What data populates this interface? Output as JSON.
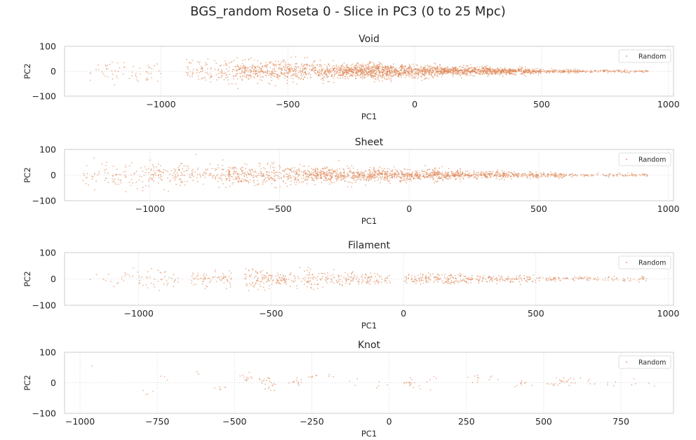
{
  "figure": {
    "suptitle": "BGS_random Roseta 0 - Slice in PC3 (0 to 25 Mpc)"
  },
  "colors": {
    "points": "#dd8452",
    "axes_edge": "#cccccc",
    "grid": "#d9d9d9",
    "text": "#262626"
  },
  "chart_data": [
    {
      "type": "scatter",
      "title": "Void",
      "xlabel": "PC1",
      "ylabel": "PC2",
      "xlim": [
        -1380,
        1020
      ],
      "ylim": [
        -100,
        100
      ],
      "xticks": [
        -1000,
        -500,
        0,
        500,
        1000
      ],
      "yticks": [
        -100,
        0,
        100
      ],
      "grid": true,
      "legend": {
        "entries": [
          "Random"
        ],
        "placement": "top-right"
      },
      "series": [
        {
          "name": "Random",
          "color": "#dd8452",
          "approx_count": 2600,
          "density_profile": [
            {
              "x": [
                -1280,
                -1000
              ],
              "y_spread": 45,
              "count": 60
            },
            {
              "x": [
                -900,
                -700
              ],
              "y_spread": 45,
              "count": 120
            },
            {
              "x": [
                -700,
                -450
              ],
              "y_spread": 40,
              "count": 340
            },
            {
              "x": [
                -450,
                -300
              ],
              "y_spread": 35,
              "count": 210
            },
            {
              "x": [
                -300,
                -100
              ],
              "y_spread": 30,
              "count": 520
            },
            {
              "x": [
                -100,
                100
              ],
              "y_spread": 25,
              "count": 420
            },
            {
              "x": [
                100,
                300
              ],
              "y_spread": 18,
              "count": 420
            },
            {
              "x": [
                300,
                500
              ],
              "y_spread": 12,
              "count": 330
            },
            {
              "x": [
                500,
                700
              ],
              "y_spread": 8,
              "count": 130
            },
            {
              "x": [
                700,
                920
              ],
              "y_spread": 5,
              "count": 90
            }
          ]
        }
      ]
    },
    {
      "type": "scatter",
      "title": "Sheet",
      "xlabel": "PC1",
      "ylabel": "PC2",
      "xlim": [
        -1330,
        1020
      ],
      "ylim": [
        -100,
        100
      ],
      "xticks": [
        -1000,
        -500,
        0,
        500,
        1000
      ],
      "yticks": [
        -100,
        0,
        100
      ],
      "grid": true,
      "legend": {
        "entries": [
          "Random"
        ],
        "placement": "top-right"
      },
      "series": [
        {
          "name": "Random",
          "color": "#dd8452",
          "approx_count": 1900,
          "density_profile": [
            {
              "x": [
                -1260,
                -1000
              ],
              "y_spread": 55,
              "count": 90
            },
            {
              "x": [
                -1000,
                -700
              ],
              "y_spread": 45,
              "count": 170
            },
            {
              "x": [
                -700,
                -400
              ],
              "y_spread": 40,
              "count": 300
            },
            {
              "x": [
                -400,
                -200
              ],
              "y_spread": 30,
              "count": 300
            },
            {
              "x": [
                -200,
                0
              ],
              "y_spread": 25,
              "count": 300
            },
            {
              "x": [
                0,
                200
              ],
              "y_spread": 22,
              "count": 300
            },
            {
              "x": [
                200,
                400
              ],
              "y_spread": 15,
              "count": 200
            },
            {
              "x": [
                400,
                600
              ],
              "y_spread": 10,
              "count": 150
            },
            {
              "x": [
                600,
                920
              ],
              "y_spread": 6,
              "count": 100
            }
          ]
        }
      ]
    },
    {
      "type": "scatter",
      "title": "Filament",
      "xlabel": "PC1",
      "ylabel": "PC2",
      "xlim": [
        -1280,
        1020
      ],
      "ylim": [
        -100,
        100
      ],
      "xticks": [
        -1000,
        -500,
        0,
        500,
        1000
      ],
      "yticks": [
        -100,
        0,
        100
      ],
      "grid": true,
      "legend": {
        "entries": [
          "Random"
        ],
        "placement": "top-right"
      },
      "series": [
        {
          "name": "Random",
          "color": "#dd8452",
          "approx_count": 800,
          "density_profile": [
            {
              "x": [
                -1200,
                -1000
              ],
              "y_spread": 30,
              "count": 20
            },
            {
              "x": [
                -1000,
                -850
              ],
              "y_spread": 35,
              "count": 40
            },
            {
              "x": [
                -800,
                -650
              ],
              "y_spread": 35,
              "count": 70
            },
            {
              "x": [
                -600,
                -300
              ],
              "y_spread": 35,
              "count": 190
            },
            {
              "x": [
                -300,
                -50
              ],
              "y_spread": 25,
              "count": 130
            },
            {
              "x": [
                0,
                250
              ],
              "y_spread": 20,
              "count": 160
            },
            {
              "x": [
                250,
                500
              ],
              "y_spread": 14,
              "count": 120
            },
            {
              "x": [
                500,
                920
              ],
              "y_spread": 8,
              "count": 110
            }
          ]
        }
      ]
    },
    {
      "type": "scatter",
      "title": "Knot",
      "xlabel": "PC1",
      "ylabel": "PC2",
      "xlim": [
        -1050,
        920
      ],
      "ylim": [
        -100,
        100
      ],
      "xticks": [
        -1000,
        -750,
        -500,
        -250,
        0,
        250,
        500,
        750
      ],
      "yticks": [
        -100,
        0,
        100
      ],
      "grid": true,
      "legend": {
        "entries": [
          "Random"
        ],
        "placement": "top-right"
      },
      "series": [
        {
          "name": "Random",
          "color": "#dd8452",
          "approx_count": 200,
          "clusters": [
            {
              "x": -970,
              "y": 47,
              "n": 1
            },
            {
              "x": -790,
              "y": -35,
              "n": 1
            },
            {
              "x": -770,
              "y": -20,
              "n": 3
            },
            {
              "x": -730,
              "y": 15,
              "n": 3
            },
            {
              "x": -635,
              "y": 33,
              "n": 2
            },
            {
              "x": -540,
              "y": -15,
              "n": 6
            },
            {
              "x": -460,
              "y": 15,
              "n": 12
            },
            {
              "x": -400,
              "y": 5,
              "n": 14
            },
            {
              "x": -380,
              "y": -15,
              "n": 8
            },
            {
              "x": -295,
              "y": 0,
              "n": 12
            },
            {
              "x": -260,
              "y": 15,
              "n": 6
            },
            {
              "x": -200,
              "y": 15,
              "n": 3
            },
            {
              "x": -100,
              "y": 5,
              "n": 3
            },
            {
              "x": -40,
              "y": -5,
              "n": 4
            },
            {
              "x": 60,
              "y": 0,
              "n": 14
            },
            {
              "x": 100,
              "y": -15,
              "n": 4
            },
            {
              "x": 140,
              "y": 18,
              "n": 4
            },
            {
              "x": 270,
              "y": 8,
              "n": 8
            },
            {
              "x": 330,
              "y": 8,
              "n": 4
            },
            {
              "x": 430,
              "y": -5,
              "n": 10
            },
            {
              "x": 540,
              "y": 0,
              "n": 14
            },
            {
              "x": 580,
              "y": 2,
              "n": 10
            },
            {
              "x": 650,
              "y": 3,
              "n": 5
            },
            {
              "x": 720,
              "y": 0,
              "n": 4
            },
            {
              "x": 790,
              "y": 2,
              "n": 3
            },
            {
              "x": 840,
              "y": 0,
              "n": 2
            }
          ]
        }
      ]
    }
  ]
}
